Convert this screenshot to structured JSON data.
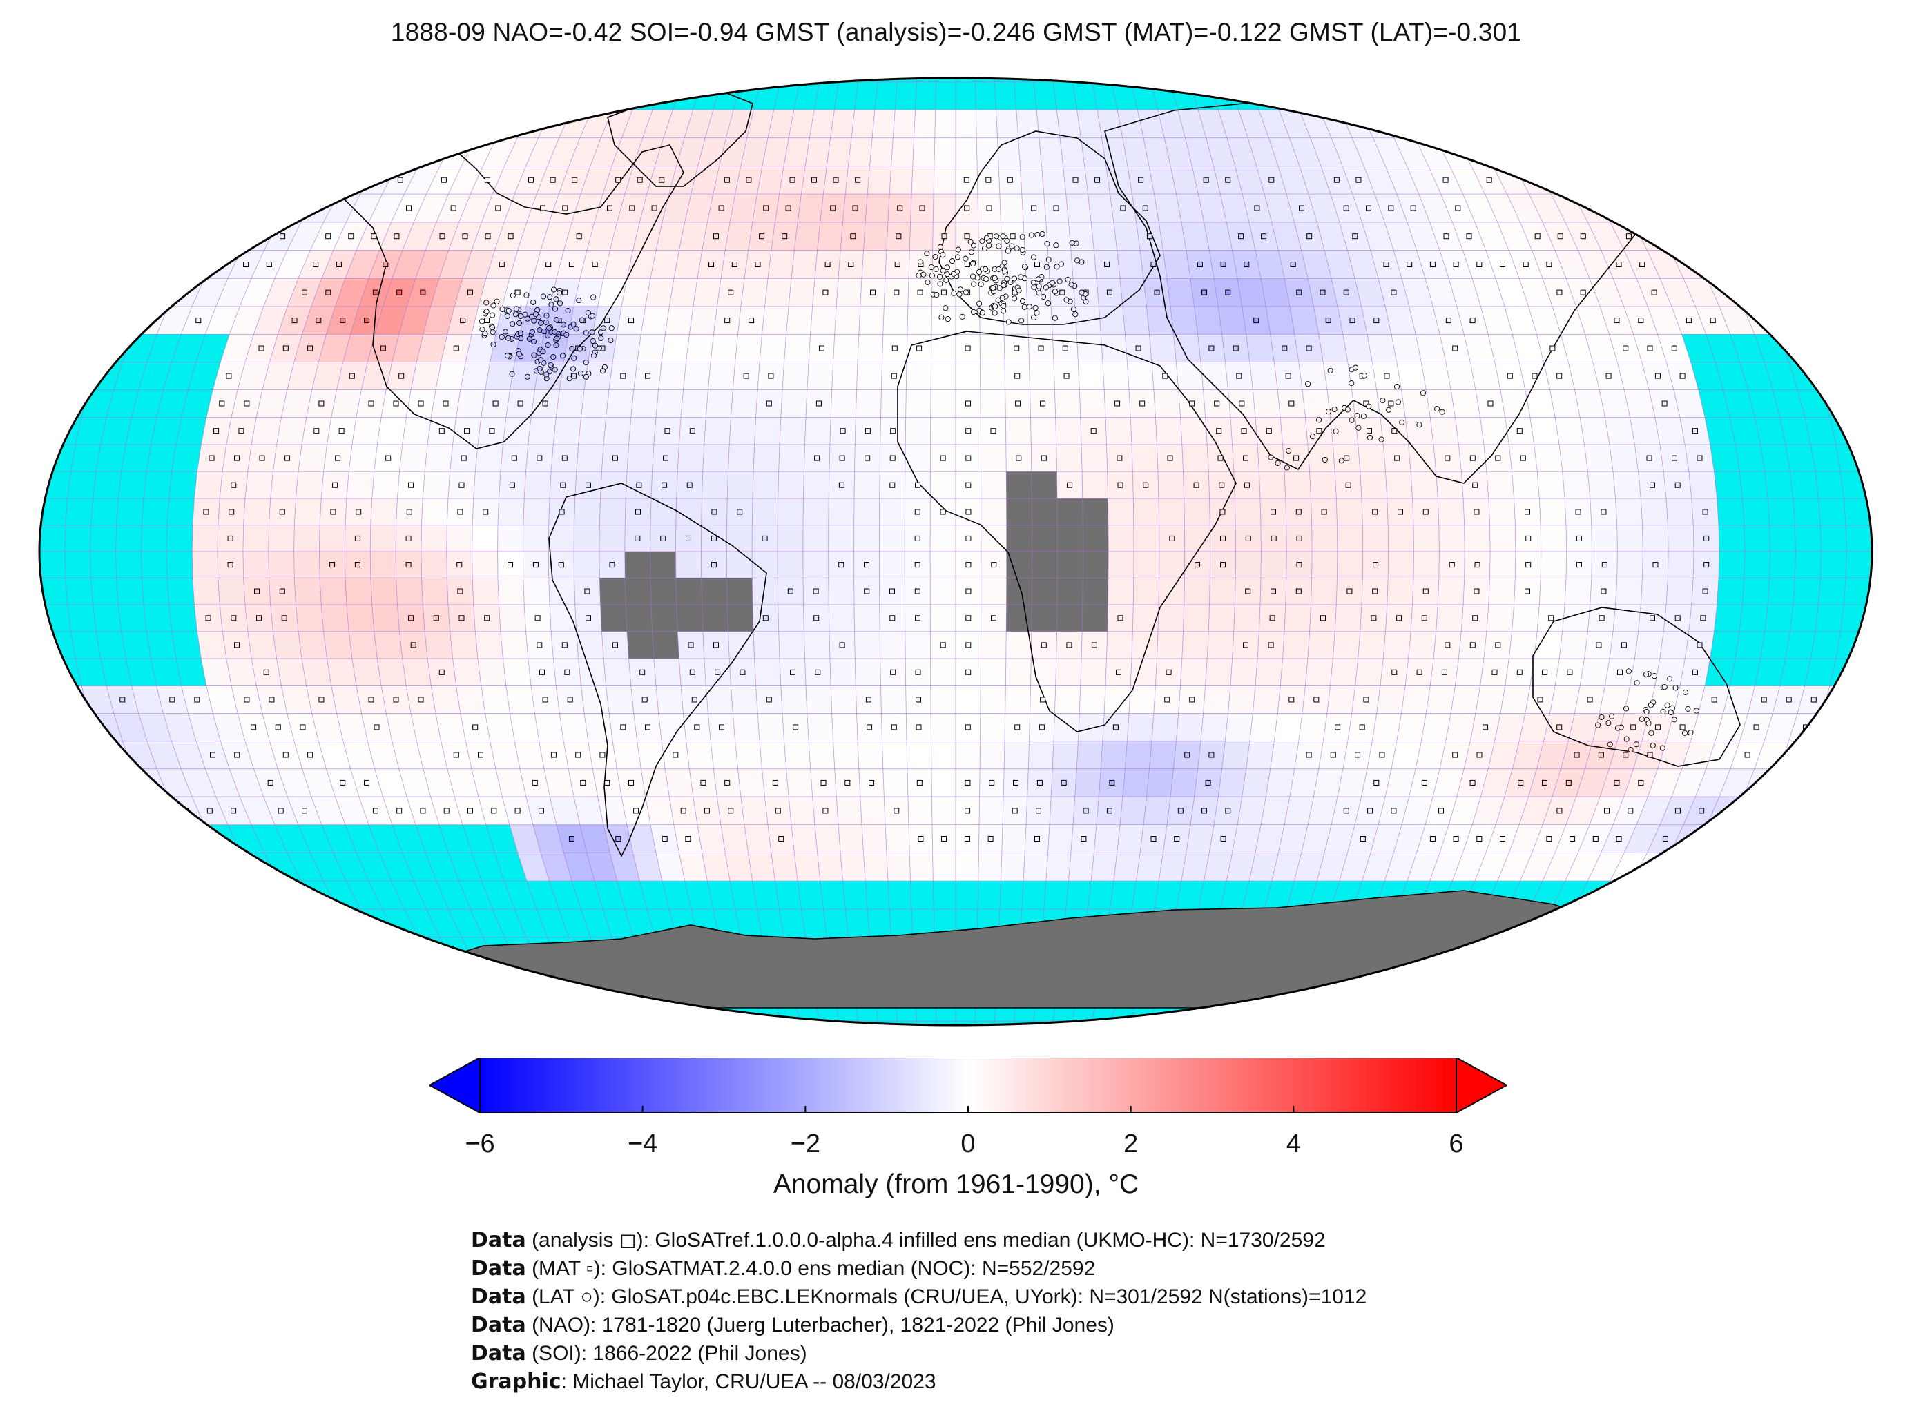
{
  "title": "1888-09 NAO=-0.42 SOI=-0.94 GMST (analysis)=-0.246 GMST (MAT)=-0.122 GMST (LAT)=-0.301",
  "map": {
    "projection": "Robinson",
    "grid": "5x5 degree",
    "colors": {
      "no_data": "#00f0f0",
      "land_missing": "#707070",
      "grid_line": "#b06ad0",
      "coast": "#000000",
      "outline": "#000000"
    },
    "legend_symbols": [
      "square (analysis)",
      "small square (MAT)",
      "circle (LAT)"
    ]
  },
  "colorbar": {
    "ticks": [
      "−6",
      "−4",
      "−2",
      "0",
      "2",
      "4",
      "6"
    ],
    "tick_values": [
      -6,
      -4,
      -2,
      0,
      2,
      4,
      6
    ],
    "min": -6,
    "max": 6,
    "extend": "both",
    "colors": [
      "#0000ff",
      "#ffffff",
      "#ff0000"
    ],
    "label": "Anomaly (from 1961-1990), °C"
  },
  "credits": [
    {
      "bold": "Data",
      "text": " (analysis ◻): GloSATref.1.0.0.0-alpha.4 infilled ens median (UKMO-HC): N=1730/2592"
    },
    {
      "bold": "Data",
      "text": " (MAT ▫): GloSATMAT.2.4.0.0 ens median (NOC): N=552/2592"
    },
    {
      "bold": "Data",
      "text": " (LAT ○): GloSAT.p04c.EBC.LEKnormals (CRU/UEA, UYork): N=301/2592 N(stations)=1012"
    },
    {
      "bold": "Data",
      "text": " (NAO): 1781-1820 (Juerg Luterbacher), 1821-2022 (Phil Jones)"
    },
    {
      "bold": "Data",
      "text": " (SOI): 1866-2022 (Phil Jones)"
    },
    {
      "bold": "Graphic",
      "text": ": Michael Taylor, CRU/UEA -- 08/03/2023"
    }
  ]
}
